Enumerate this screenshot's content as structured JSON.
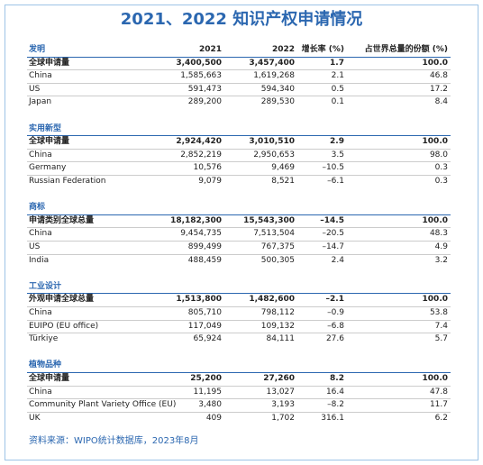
{
  "title": "2021、2022 知识产权申请情况",
  "columns": [
    "2021",
    "2022",
    "增长率 (%)",
    "占世界总量的份额 (%)"
  ],
  "sections": [
    {
      "name": "发明",
      "rows": [
        [
          "全球申请量",
          "3,400,500",
          "3,457,400",
          "1.7",
          "100.0"
        ],
        [
          "China",
          "1,585,663",
          "1,619,268",
          "2.1",
          "46.8"
        ],
        [
          "US",
          "591,473",
          "594,340",
          "0.5",
          "17.2"
        ],
        [
          "Japan",
          "289,200",
          "289,530",
          "0.1",
          "8.4"
        ]
      ]
    },
    {
      "name": "实用新型",
      "rows": [
        [
          "全球申请量",
          "2,924,420",
          "3,010,510",
          "2.9",
          "100.0"
        ],
        [
          "China",
          "2,852,219",
          "2,950,653",
          "3.5",
          "98.0"
        ],
        [
          "Germany",
          "10,576",
          "9,469",
          "–10.5",
          "0.3"
        ],
        [
          "Russian Federation",
          "9,079",
          "8,521",
          "–6.1",
          "0.3"
        ]
      ]
    },
    {
      "name": "商标",
      "rows": [
        [
          "申请类别全球总量",
          "18,182,300",
          "15,543,300",
          "–14.5",
          "100.0"
        ],
        [
          "China",
          "9,454,735",
          "7,513,504",
          "–20.5",
          "48.3"
        ],
        [
          "US",
          "899,499",
          "767,375",
          "–14.7",
          "4.9"
        ],
        [
          "India",
          "488,459",
          "500,305",
          "2.4",
          "3.2"
        ]
      ]
    },
    {
      "name": "工业设计",
      "rows": [
        [
          "外观申请全球总量",
          "1,513,800",
          "1,482,600",
          "–2.1",
          "100.0"
        ],
        [
          "China",
          "805,710",
          "798,112",
          "–0.9",
          "53.8"
        ],
        [
          "EUIPO (EU office)",
          "117,049",
          "109,132",
          "–6.8",
          "7.4"
        ],
        [
          "Türkiye",
          "65,924",
          "84,111",
          "27.6",
          "5.7"
        ]
      ]
    },
    {
      "name": "植物品种",
      "rows": [
        [
          "全球申请量",
          "25,200",
          "27,260",
          "8.2",
          "100.0"
        ],
        [
          "China",
          "11,195",
          "13,027",
          "16.4",
          "47.8"
        ],
        [
          "Community Plant Variety Office (EU)",
          "3,480",
          "3,193",
          "–8.2",
          "11.7"
        ],
        [
          "UK",
          "409",
          "1,702",
          "316.1",
          "6.2"
        ]
      ]
    }
  ],
  "source": "资料来源：WIPO统计数据库，2023年8月"
}
